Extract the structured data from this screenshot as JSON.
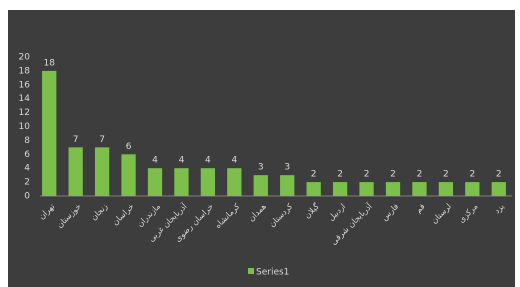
{
  "chart_data": {
    "type": "bar",
    "categories": [
      "تهران",
      "خوزستان",
      "زنجان",
      "خراسان",
      "مازندران",
      "آذربایجان غربی",
      "خراسان رضوی",
      "کرمانشاه",
      "همدان",
      "کردستان",
      "گیلان",
      "اردبیل",
      "آذربایجان شرقی",
      "فارس",
      "قم",
      "لرستان",
      "مرکزی",
      "یزد"
    ],
    "series": [
      {
        "name": "Series1",
        "color": "#7cc04b",
        "values": [
          18,
          7,
          7,
          6,
          4,
          4,
          4,
          4,
          3,
          3,
          2,
          2,
          2,
          2,
          2,
          2,
          2,
          2
        ]
      }
    ],
    "ylim": [
      0,
      20
    ],
    "yticks": [
      0,
      2,
      4,
      6,
      8,
      10,
      12,
      14,
      16,
      18,
      20
    ],
    "grid": false,
    "legend": "bottom"
  }
}
